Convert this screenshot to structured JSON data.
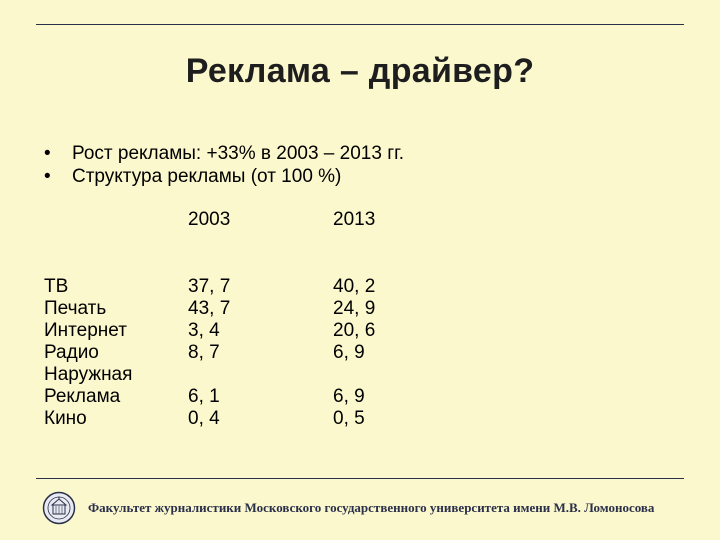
{
  "title": "Реклама – драйвер?",
  "bullets": [
    {
      "marker": "•",
      "text": "Рост рекламы: +33% в 2003 – 2013  гг."
    },
    {
      "marker": "•",
      "text": "Структура рекламы (от 100 %)"
    }
  ],
  "table": {
    "headers": [
      "2003",
      "2013"
    ],
    "labels": [
      "ТВ",
      "Печать",
      "Интернет",
      "Радио",
      "Наружная",
      "Реклама",
      "Кино"
    ],
    "values_2003": [
      "37, 7",
      "43, 7",
      "3, 4",
      "8, 7",
      "",
      "6, 1",
      "0, 4"
    ],
    "values_2013": [
      "40, 2",
      "24, 9",
      "20, 6",
      "6, 9",
      "",
      "6, 9",
      "0, 5"
    ]
  },
  "footer": {
    "logo_icon": "msu-seal-icon",
    "text": "Факультет журналистики Московского государственного университета имени М.В. Ломоносова"
  },
  "colors": {
    "background": "#fbf8cd",
    "rule": "#2a2f4a",
    "title": "#1e1e1e"
  }
}
